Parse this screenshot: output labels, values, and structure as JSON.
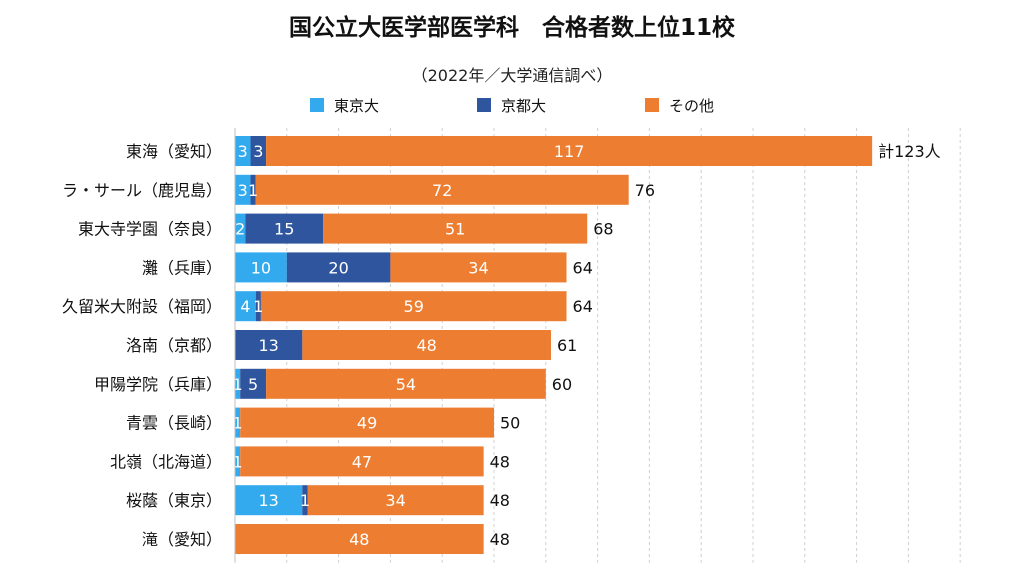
{
  "title": "国公立大医学部医学科　合格者数上位11校",
  "subtitle": "（2022年／大学通信調べ）",
  "colors": {
    "tokyo": "#33aaee",
    "kyoto": "#2e559e",
    "other": "#ed7d31"
  },
  "chart_data": {
    "type": "bar",
    "orientation": "horizontal",
    "stacked": true,
    "title": "国公立大医学部医学科　合格者数上位11校",
    "subtitle": "（2022年／大学通信調べ）",
    "categories": [
      "東海（愛知）",
      "ラ・サール（鹿児島）",
      "東大寺学園（奈良）",
      "灘（兵庫）",
      "久留米大附設（福岡）",
      "洛南（京都）",
      "甲陽学院（兵庫）",
      "青雲（長崎）",
      "北嶺（北海道）",
      "桜蔭（東京）",
      "滝（愛知）"
    ],
    "series": [
      {
        "name": "東京大",
        "values": [
          3,
          3,
          2,
          10,
          4,
          0,
          1,
          1,
          1,
          13,
          0
        ]
      },
      {
        "name": "京都大",
        "values": [
          3,
          1,
          15,
          20,
          1,
          13,
          5,
          0,
          0,
          1,
          0
        ]
      },
      {
        "name": "その他",
        "values": [
          117,
          72,
          51,
          34,
          59,
          48,
          54,
          49,
          47,
          34,
          48
        ]
      }
    ],
    "totals": [
      "計123人",
      "76",
      "68",
      "64",
      "64",
      "61",
      "60",
      "50",
      "48",
      "48",
      "48"
    ],
    "xlim": [
      0,
      140
    ],
    "grid": "vertical-dashed",
    "legend": "top"
  }
}
